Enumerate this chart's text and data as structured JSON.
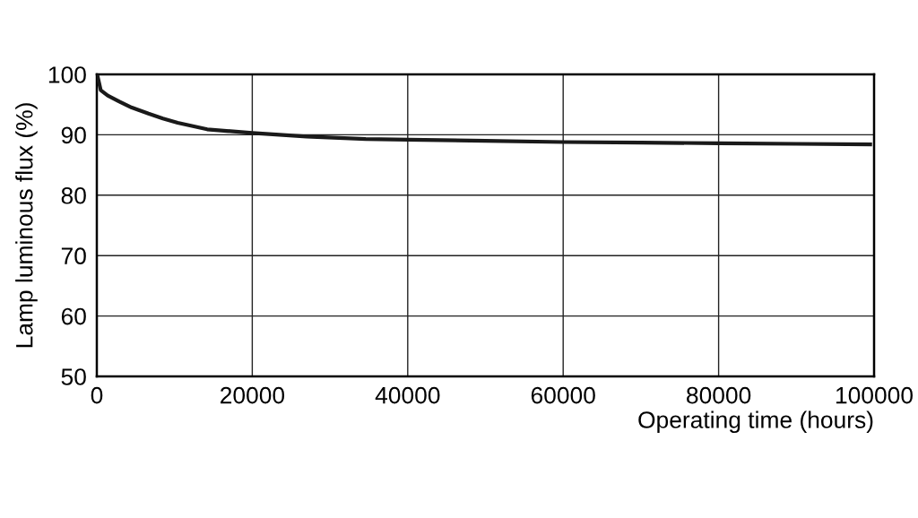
{
  "chart_data": {
    "type": "line",
    "xlabel": "Operating time (hours)",
    "ylabel": "Lamp luminous flux (%)",
    "series": [
      {
        "color": "#1a1a1a",
        "x": [
          0,
          100,
          500,
          1400,
          2900,
          4500,
          6650,
          8500,
          10400,
          14200,
          20000,
          27000,
          34600,
          40000,
          50000,
          60000,
          70000,
          80000,
          90000,
          99500
        ],
        "values": [
          100,
          99.7,
          97.4,
          96.5,
          95.5,
          94.5,
          93.5,
          92.7,
          92.0,
          90.9,
          90.3,
          89.7,
          89.3,
          89.2,
          89.0,
          88.8,
          88.7,
          88.6,
          88.5,
          88.4
        ]
      }
    ],
    "xlim": [
      0,
      100000
    ],
    "xticks": [
      0,
      20000,
      40000,
      60000,
      80000,
      100000
    ],
    "ylim": [
      50,
      100
    ],
    "yticks": [
      50,
      60,
      70,
      80,
      90,
      100
    ],
    "grid": true,
    "legend": false,
    "marker": "none",
    "line_style": "solid"
  }
}
